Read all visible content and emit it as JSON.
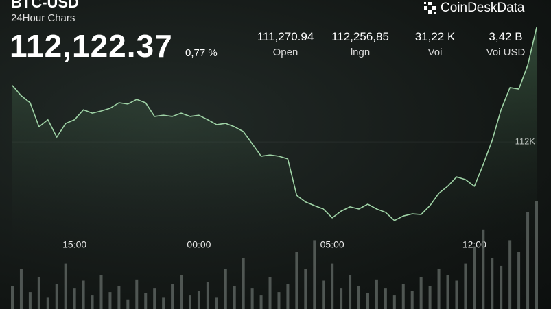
{
  "header": {
    "brand": "CoinDeskData",
    "price": "112,122.37",
    "change": "0,77 %",
    "stats": [
      {
        "value": "111,270.94",
        "label": "Open"
      },
      {
        "value": "112,256,85",
        "label": "lngn"
      },
      {
        "value": "31,22 K",
        "label": "Voi"
      },
      {
        "value": "3,42 B",
        "label": "Voi USD"
      }
    ]
  },
  "chart_data": [
    {
      "type": "line",
      "title": "BTC-USD",
      "subtitle": "24Hour Chars",
      "color": "#9fd3a6",
      "categories": [
        null,
        null,
        null,
        null,
        null,
        null,
        null,
        "15:00",
        null,
        null,
        null,
        null,
        null,
        null,
        null,
        null,
        null,
        null,
        null,
        null,
        null,
        "00:00",
        null,
        null,
        null,
        null,
        null,
        null,
        null,
        null,
        null,
        null,
        null,
        null,
        null,
        null,
        "05:00",
        null,
        null,
        null,
        null,
        null,
        null,
        null,
        null,
        null,
        null,
        null,
        null,
        null,
        null,
        null,
        "12:00",
        null,
        null,
        null,
        null,
        null,
        null,
        null
      ],
      "values": [
        112186,
        112152,
        112129,
        112050,
        112073,
        112016,
        112061,
        112073,
        112106,
        112095,
        112102,
        112111,
        112129,
        112125,
        112140,
        112129,
        112084,
        112088,
        112084,
        112095,
        112084,
        112088,
        112073,
        112057,
        112061,
        112050,
        112034,
        111994,
        111953,
        111957,
        111953,
        111944,
        111824,
        111802,
        111790,
        111779,
        111750,
        111772,
        111786,
        111779,
        111795,
        111779,
        111768,
        111741,
        111756,
        111763,
        111761,
        111790,
        111831,
        111854,
        111885,
        111876,
        111854,
        111926,
        112005,
        112106,
        112179,
        112174,
        112253,
        112377
      ],
      "ylim": [
        111700,
        112400
      ],
      "yticks": [
        {
          "value": 112000,
          "label": "112K"
        }
      ],
      "grid": true
    },
    {
      "type": "bar",
      "color": "#5f6663",
      "ylim": [
        0,
        100
      ],
      "values": [
        20,
        35,
        15,
        28,
        10,
        22,
        40,
        18,
        25,
        12,
        30,
        15,
        20,
        8,
        26,
        14,
        18,
        10,
        22,
        30,
        12,
        16,
        24,
        10,
        35,
        20,
        45,
        18,
        12,
        28,
        15,
        22,
        50,
        35,
        60,
        25,
        40,
        18,
        30,
        20,
        14,
        26,
        18,
        12,
        22,
        16,
        28,
        20,
        35,
        30,
        25,
        40,
        55,
        70,
        45,
        38,
        60,
        50,
        85,
        95
      ]
    }
  ]
}
